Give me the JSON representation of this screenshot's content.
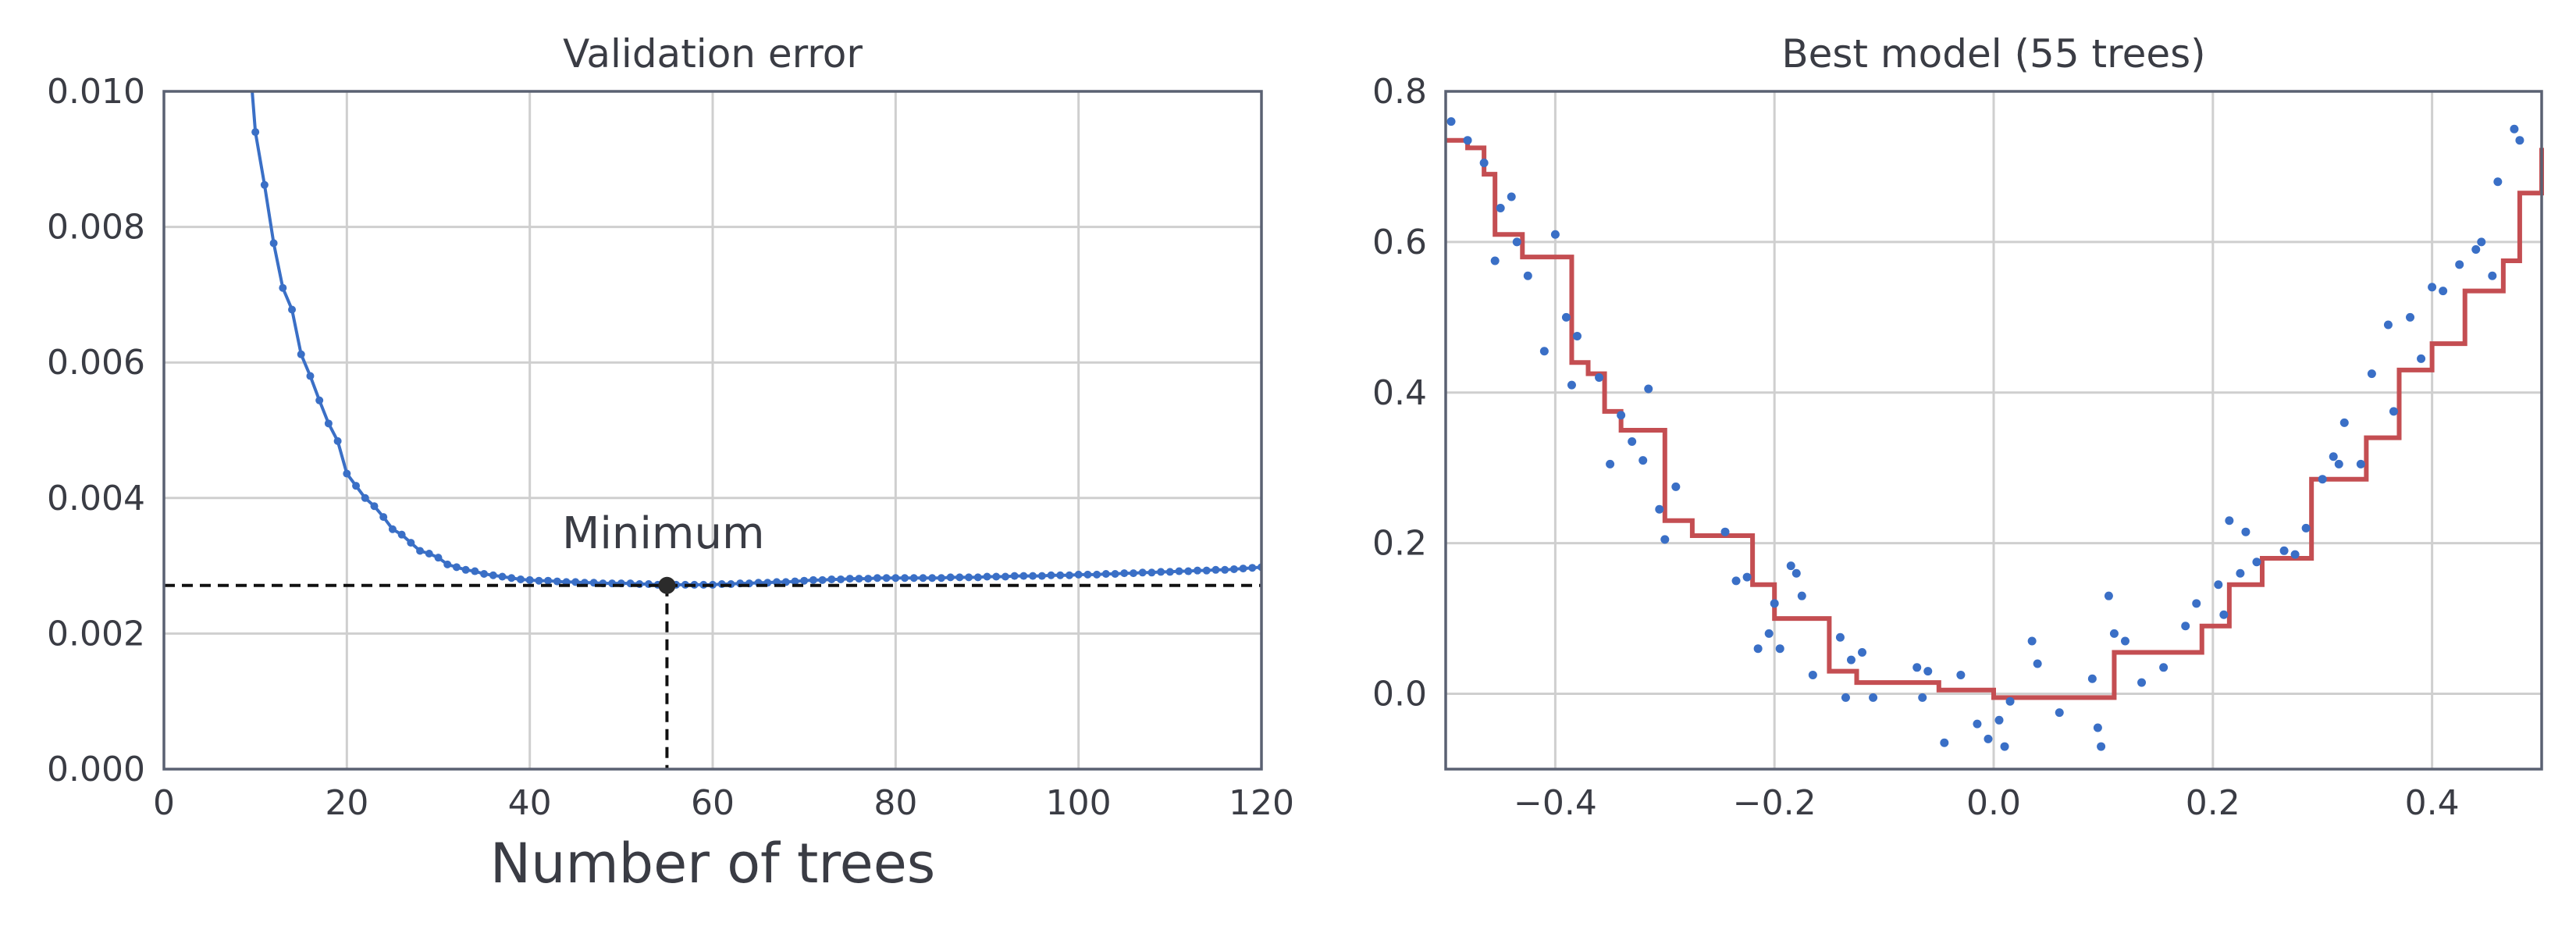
{
  "colors": {
    "line": "#3a6fc6",
    "step": "#c44e52",
    "marker": "#2b2b2b",
    "grid": "#cfcfcf",
    "text": "#3a3c44"
  },
  "chart_data": [
    {
      "type": "line",
      "title": "Validation error",
      "xlabel": "Number of trees",
      "ylabel": "",
      "xlim": [
        0,
        120
      ],
      "ylim": [
        0,
        0.01
      ],
      "grid": true,
      "xticks": [
        "0",
        "20",
        "40",
        "60",
        "80",
        "100",
        "120"
      ],
      "yticks": [
        "0.000",
        "0.002",
        "0.004",
        "0.006",
        "0.008",
        "0.010"
      ],
      "annotation": {
        "text": "Minimum",
        "x": 55,
        "y": 0.00271
      },
      "min_point": {
        "x": 55,
        "y": 0.00271
      },
      "series": [
        {
          "x": [
            10,
            11,
            12,
            13,
            14,
            15,
            16,
            17,
            18,
            19,
            20,
            21,
            22,
            23,
            24,
            25,
            26,
            27,
            28,
            29,
            30,
            31,
            32,
            33,
            34,
            35,
            36,
            37,
            38,
            39,
            40,
            41,
            42,
            43,
            44,
            45,
            46,
            47,
            48,
            49,
            50,
            51,
            52,
            53,
            54,
            55,
            56,
            57,
            58,
            59,
            60,
            61,
            62,
            63,
            64,
            65,
            66,
            67,
            68,
            69,
            70,
            71,
            72,
            73,
            74,
            75,
            76,
            77,
            78,
            79,
            80,
            81,
            82,
            83,
            84,
            85,
            86,
            87,
            88,
            89,
            90,
            91,
            92,
            93,
            94,
            95,
            96,
            97,
            98,
            99,
            100,
            101,
            102,
            103,
            104,
            105,
            106,
            107,
            108,
            109,
            110,
            111,
            112,
            113,
            114,
            115,
            116,
            117,
            118,
            119,
            120
          ],
          "values": [
            0.0094,
            0.00862,
            0.00776,
            0.0071,
            0.00678,
            0.00612,
            0.0058,
            0.00544,
            0.0051,
            0.00484,
            0.00436,
            0.00418,
            0.004,
            0.00388,
            0.00372,
            0.00354,
            0.00346,
            0.00334,
            0.00322,
            0.00318,
            0.00312,
            0.00302,
            0.00298,
            0.00294,
            0.00292,
            0.00288,
            0.00286,
            0.00284,
            0.00282,
            0.0028,
            0.00279,
            0.00278,
            0.00278,
            0.00277,
            0.00276,
            0.00276,
            0.00275,
            0.00275,
            0.00274,
            0.00274,
            0.00274,
            0.00274,
            0.00273,
            0.00273,
            0.00272,
            0.00271,
            0.00272,
            0.00272,
            0.00272,
            0.00272,
            0.00272,
            0.00273,
            0.00273,
            0.00274,
            0.00274,
            0.00275,
            0.00275,
            0.00276,
            0.00276,
            0.00277,
            0.00278,
            0.00279,
            0.00279,
            0.0028,
            0.0028,
            0.00281,
            0.00281,
            0.00281,
            0.00282,
            0.00282,
            0.00282,
            0.00282,
            0.00282,
            0.00282,
            0.00282,
            0.00282,
            0.00283,
            0.00283,
            0.00283,
            0.00283,
            0.00284,
            0.00284,
            0.00284,
            0.00285,
            0.00285,
            0.00285,
            0.00285,
            0.00286,
            0.00286,
            0.00286,
            0.00287,
            0.00287,
            0.00287,
            0.00288,
            0.00288,
            0.00289,
            0.00289,
            0.0029,
            0.0029,
            0.00291,
            0.00291,
            0.00292,
            0.00292,
            0.00293,
            0.00293,
            0.00294,
            0.00294,
            0.00295,
            0.00296,
            0.00297,
            0.00298
          ]
        }
      ]
    },
    {
      "type": "scatter",
      "title": "Best model (55 trees)",
      "xlabel": "",
      "ylabel": "",
      "xlim": [
        -0.5,
        0.5
      ],
      "ylim": [
        -0.1,
        0.8
      ],
      "grid": true,
      "xticks": [
        "−0.4",
        "−0.2",
        "0.0",
        "0.2",
        "0.4"
      ],
      "xtick_values": [
        -0.4,
        -0.2,
        0.0,
        0.2,
        0.4
      ],
      "yticks": [
        "0.0",
        "0.2",
        "0.4",
        "0.6",
        "0.8"
      ],
      "ytick_values": [
        0.0,
        0.2,
        0.4,
        0.6,
        0.8
      ],
      "points": [
        [
          -0.495,
          0.76
        ],
        [
          -0.48,
          0.735
        ],
        [
          -0.465,
          0.705
        ],
        [
          -0.455,
          0.575
        ],
        [
          -0.45,
          0.645
        ],
        [
          -0.44,
          0.66
        ],
        [
          -0.435,
          0.6
        ],
        [
          -0.425,
          0.555
        ],
        [
          -0.41,
          0.455
        ],
        [
          -0.4,
          0.61
        ],
        [
          -0.39,
          0.5
        ],
        [
          -0.38,
          0.475
        ],
        [
          -0.385,
          0.41
        ],
        [
          -0.36,
          0.42
        ],
        [
          -0.35,
          0.305
        ],
        [
          -0.34,
          0.37
        ],
        [
          -0.33,
          0.335
        ],
        [
          -0.32,
          0.31
        ],
        [
          -0.315,
          0.405
        ],
        [
          -0.305,
          0.245
        ],
        [
          -0.3,
          0.205
        ],
        [
          -0.29,
          0.275
        ],
        [
          -0.245,
          0.215
        ],
        [
          -0.235,
          0.15
        ],
        [
          -0.225,
          0.155
        ],
        [
          -0.215,
          0.06
        ],
        [
          -0.205,
          0.08
        ],
        [
          -0.2,
          0.12
        ],
        [
          -0.195,
          0.06
        ],
        [
          -0.185,
          0.17
        ],
        [
          -0.18,
          0.16
        ],
        [
          -0.175,
          0.13
        ],
        [
          -0.165,
          0.025
        ],
        [
          -0.14,
          0.075
        ],
        [
          -0.135,
          -0.005
        ],
        [
          -0.13,
          0.045
        ],
        [
          -0.12,
          0.055
        ],
        [
          -0.11,
          -0.005
        ],
        [
          -0.07,
          0.035
        ],
        [
          -0.065,
          -0.005
        ],
        [
          -0.06,
          0.03
        ],
        [
          -0.045,
          -0.065
        ],
        [
          -0.03,
          0.025
        ],
        [
          -0.015,
          -0.04
        ],
        [
          -0.005,
          -0.06
        ],
        [
          0.005,
          -0.035
        ],
        [
          0.01,
          -0.07
        ],
        [
          0.015,
          -0.01
        ],
        [
          0.035,
          0.07
        ],
        [
          0.04,
          0.04
        ],
        [
          0.06,
          -0.025
        ],
        [
          0.09,
          0.02
        ],
        [
          0.095,
          -0.045
        ],
        [
          0.098,
          -0.07
        ],
        [
          0.105,
          0.13
        ],
        [
          0.11,
          0.08
        ],
        [
          0.12,
          0.07
        ],
        [
          0.135,
          0.015
        ],
        [
          0.155,
          0.035
        ],
        [
          0.175,
          0.09
        ],
        [
          0.185,
          0.12
        ],
        [
          0.205,
          0.145
        ],
        [
          0.21,
          0.105
        ],
        [
          0.215,
          0.23
        ],
        [
          0.225,
          0.16
        ],
        [
          0.23,
          0.215
        ],
        [
          0.24,
          0.175
        ],
        [
          0.265,
          0.19
        ],
        [
          0.275,
          0.185
        ],
        [
          0.285,
          0.22
        ],
        [
          0.3,
          0.285
        ],
        [
          0.31,
          0.315
        ],
        [
          0.315,
          0.305
        ],
        [
          0.32,
          0.36
        ],
        [
          0.335,
          0.305
        ],
        [
          0.345,
          0.425
        ],
        [
          0.36,
          0.49
        ],
        [
          0.365,
          0.375
        ],
        [
          0.38,
          0.5
        ],
        [
          0.39,
          0.445
        ],
        [
          0.4,
          0.54
        ],
        [
          0.41,
          0.535
        ],
        [
          0.425,
          0.57
        ],
        [
          0.44,
          0.59
        ],
        [
          0.445,
          0.6
        ],
        [
          0.455,
          0.555
        ],
        [
          0.46,
          0.68
        ],
        [
          0.475,
          0.75
        ],
        [
          0.48,
          0.735
        ]
      ],
      "step_series": {
        "x": [
          -0.5,
          -0.48,
          -0.465,
          -0.455,
          -0.43,
          -0.395,
          -0.385,
          -0.37,
          -0.355,
          -0.34,
          -0.31,
          -0.3,
          -0.275,
          -0.235,
          -0.22,
          -0.2,
          -0.175,
          -0.15,
          -0.125,
          -0.075,
          -0.05,
          0.0,
          0.04,
          0.07,
          0.1,
          0.11,
          0.17,
          0.19,
          0.215,
          0.245,
          0.285,
          0.29,
          0.31,
          0.34,
          0.37,
          0.4,
          0.43,
          0.465,
          0.48,
          0.5
        ],
        "y": [
          0.735,
          0.725,
          0.69,
          0.61,
          0.58,
          0.58,
          0.44,
          0.425,
          0.375,
          0.35,
          0.35,
          0.23,
          0.21,
          0.21,
          0.145,
          0.1,
          0.1,
          0.03,
          0.015,
          0.015,
          0.005,
          -0.005,
          -0.005,
          -0.005,
          -0.005,
          0.055,
          0.055,
          0.09,
          0.145,
          0.18,
          0.18,
          0.285,
          0.285,
          0.34,
          0.43,
          0.465,
          0.535,
          0.575,
          0.665,
          0.725
        ]
      }
    }
  ]
}
